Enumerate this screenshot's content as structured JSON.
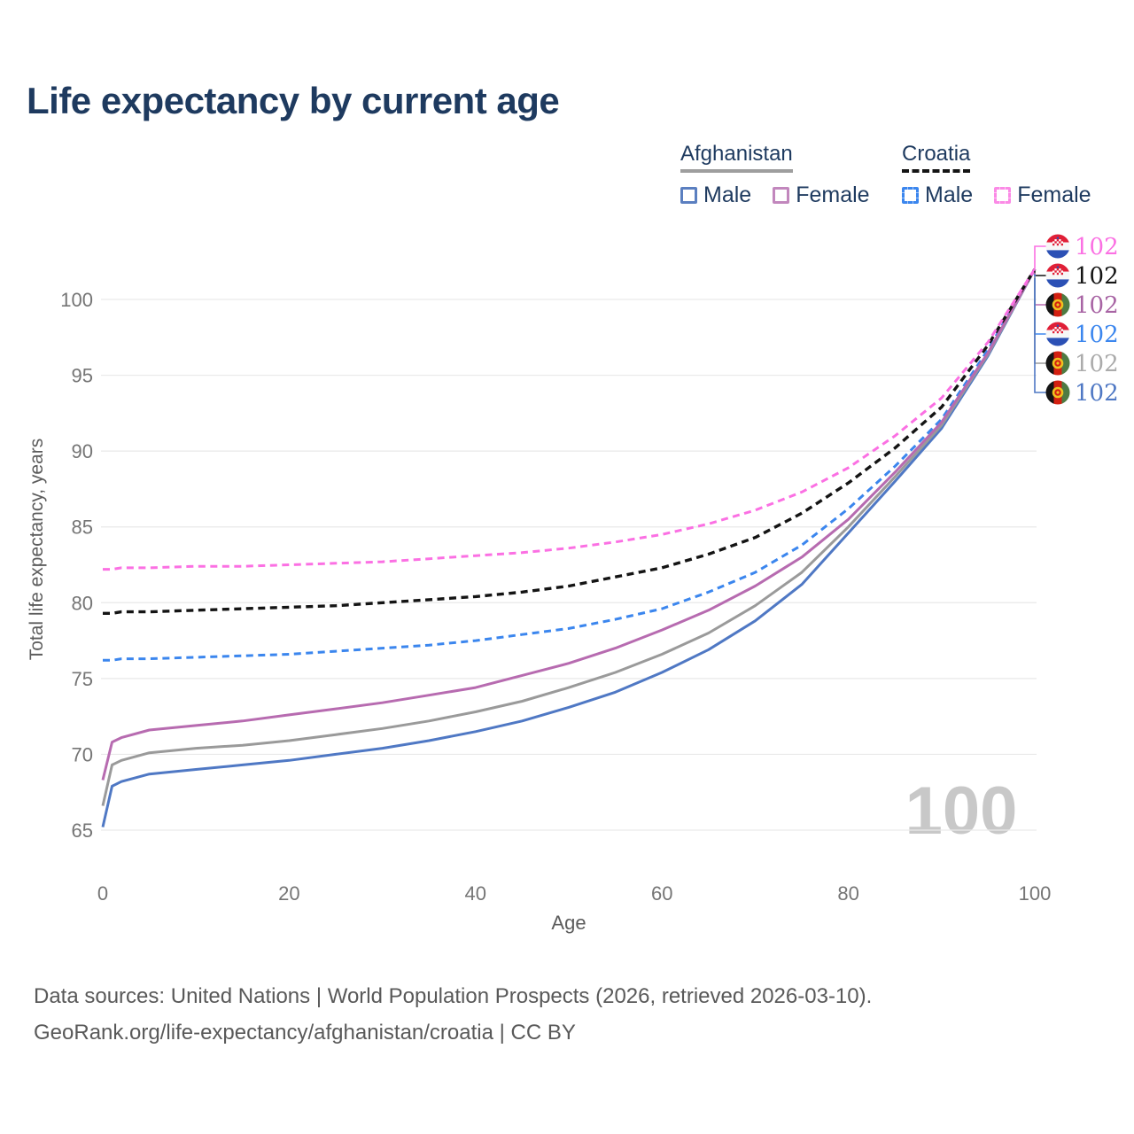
{
  "title": "Life expectancy by current age",
  "title_color": "#1e3a5f",
  "legend": {
    "groups": [
      {
        "name": "Afghanistan",
        "underline_style": "solid",
        "underline_color": "#9e9e9e",
        "items": [
          {
            "label": "Male",
            "swatch_color": "#5b7fc0",
            "swatch_style": "solid"
          },
          {
            "label": "Female",
            "swatch_color": "#c287bd",
            "swatch_style": "solid"
          }
        ]
      },
      {
        "name": "Croatia",
        "underline_style": "dashed",
        "underline_color": "#141414",
        "items": [
          {
            "label": "Male",
            "swatch_color": "#3b86ee",
            "swatch_style": "dashed"
          },
          {
            "label": "Female",
            "swatch_color": "#fb8ae6",
            "swatch_style": "dashed"
          }
        ]
      }
    ]
  },
  "chart_data": {
    "type": "line",
    "title": "Life expectancy by current age",
    "xlabel": "Age",
    "ylabel": "Total life expectancy, years",
    "xlim": [
      0,
      100
    ],
    "ylim": [
      63.5,
      103.5
    ],
    "xticks": [
      0,
      20,
      40,
      60,
      80,
      100
    ],
    "yticks": [
      65,
      70,
      75,
      80,
      85,
      90,
      95,
      100
    ],
    "grid": "horizontal-only",
    "gridline_color": "#e9e9e9",
    "tick_color": "#757575",
    "axis_title_color": "#5c5c5c",
    "age_indicator": "100",
    "age_indicator_color": "#c8c8c8",
    "x": [
      0,
      1,
      2,
      5,
      10,
      15,
      20,
      25,
      30,
      35,
      40,
      45,
      50,
      55,
      60,
      65,
      70,
      75,
      80,
      85,
      90,
      95,
      100
    ],
    "series": [
      {
        "name": "Croatia Female",
        "country": "croatia",
        "sex": "female",
        "line_style": "dashed",
        "color": "#fb70e3",
        "label_color": "#fb70e3",
        "end_label": "102",
        "end_value": 102,
        "values": [
          82.2,
          82.2,
          82.3,
          82.3,
          82.4,
          82.4,
          82.5,
          82.6,
          82.7,
          82.9,
          83.1,
          83.3,
          83.6,
          84.0,
          84.5,
          85.2,
          86.1,
          87.3,
          88.9,
          91.0,
          93.5,
          97.2,
          102
        ]
      },
      {
        "name": "Croatia Both sexes",
        "country": "croatia",
        "sex": "both",
        "line_style": "dashed",
        "color": "#141414",
        "label_color": "#141414",
        "end_label": "102",
        "end_value": 102,
        "values": [
          79.3,
          79.3,
          79.4,
          79.4,
          79.5,
          79.6,
          79.7,
          79.8,
          80.0,
          80.2,
          80.4,
          80.7,
          81.1,
          81.7,
          82.3,
          83.2,
          84.3,
          85.9,
          87.9,
          90.2,
          92.9,
          97.0,
          102
        ]
      },
      {
        "name": "Afghanistan Female",
        "country": "afghanistan",
        "sex": "female",
        "line_style": "solid",
        "color": "#b76bb0",
        "label_color": "#a864a4",
        "end_label": "102",
        "end_value": 102,
        "values": [
          68.3,
          70.8,
          71.1,
          71.6,
          71.9,
          72.2,
          72.6,
          73.0,
          73.4,
          73.9,
          74.4,
          75.2,
          76.0,
          77.0,
          78.2,
          79.5,
          81.1,
          83.0,
          85.5,
          88.6,
          91.9,
          96.5,
          102
        ]
      },
      {
        "name": "Croatia Male",
        "country": "croatia",
        "sex": "male",
        "line_style": "dashed",
        "color": "#3b86ee",
        "label_color": "#3b86ee",
        "end_label": "102",
        "end_value": 102,
        "values": [
          76.2,
          76.2,
          76.3,
          76.3,
          76.4,
          76.5,
          76.6,
          76.8,
          77.0,
          77.2,
          77.5,
          77.9,
          78.3,
          78.9,
          79.6,
          80.7,
          82.0,
          83.8,
          86.2,
          89.0,
          92.1,
          96.7,
          102
        ]
      },
      {
        "name": "Afghanistan Both sexes",
        "country": "afghanistan",
        "sex": "both",
        "line_style": "solid",
        "color": "#9a9a9a",
        "label_color": "#ababab",
        "end_label": "102",
        "end_value": 102,
        "values": [
          66.6,
          69.3,
          69.6,
          70.1,
          70.4,
          70.6,
          70.9,
          71.3,
          71.7,
          72.2,
          72.8,
          73.5,
          74.4,
          75.4,
          76.6,
          78.0,
          79.8,
          82.0,
          85.0,
          88.3,
          91.7,
          96.4,
          102
        ]
      },
      {
        "name": "Afghanistan Male",
        "country": "afghanistan",
        "sex": "male",
        "line_style": "solid",
        "color": "#4f78c4",
        "label_color": "#4f78c4",
        "end_label": "102",
        "end_value": 102,
        "values": [
          65.2,
          67.9,
          68.2,
          68.7,
          69.0,
          69.3,
          69.6,
          70.0,
          70.4,
          70.9,
          71.5,
          72.2,
          73.1,
          74.1,
          75.4,
          76.9,
          78.8,
          81.2,
          84.6,
          88.0,
          91.5,
          96.3,
          102
        ]
      }
    ]
  },
  "footer": {
    "line1": "Data sources: United Nations | World Population Prospects (2026, retrieved 2026-03-10).",
    "line2": "GeoRank.org/life-expectancy/afghanistan/croatia | CC BY"
  }
}
